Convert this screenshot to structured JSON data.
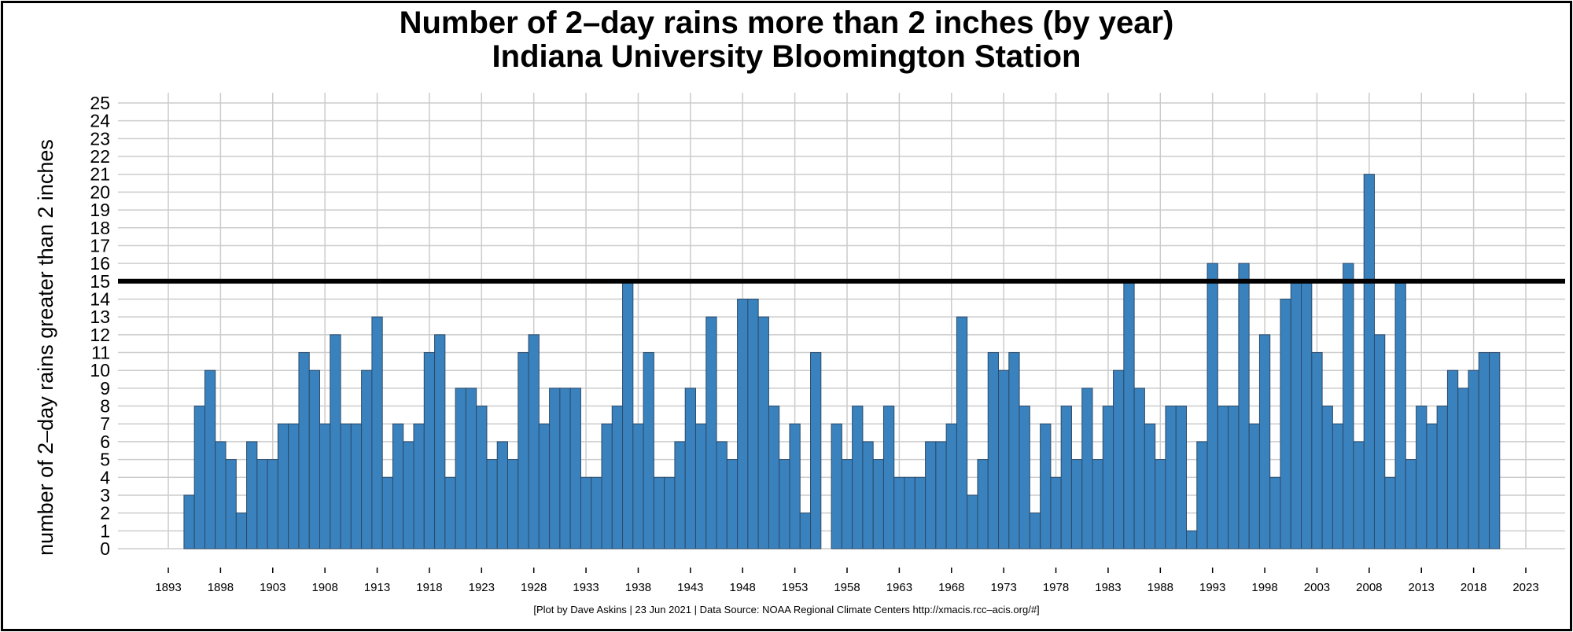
{
  "chart_data": {
    "type": "bar",
    "title": "Number of 2–day rains more than 2 inches (by year)",
    "subtitle": "Indiana University Bloomington Station",
    "xlabel": "",
    "ylabel": "number of 2–day rains greater than 2 inches",
    "ylim": [
      0,
      25
    ],
    "xlim": [
      1893,
      2023
    ],
    "yticks": [
      0,
      1,
      2,
      3,
      4,
      5,
      6,
      7,
      8,
      9,
      10,
      11,
      12,
      13,
      14,
      15,
      16,
      17,
      18,
      19,
      20,
      21,
      22,
      23,
      24,
      25
    ],
    "xticks": [
      1893,
      1898,
      1903,
      1908,
      1913,
      1918,
      1923,
      1928,
      1933,
      1938,
      1943,
      1948,
      1953,
      1958,
      1963,
      1968,
      1973,
      1978,
      1983,
      1988,
      1993,
      1998,
      2003,
      2008,
      2013,
      2018,
      2023
    ],
    "grid": true,
    "reference_line": 15,
    "bar_color": "#3a82bd",
    "bar_edge_color": "#2a4a6a",
    "years": [
      1895,
      1896,
      1897,
      1898,
      1899,
      1900,
      1901,
      1902,
      1903,
      1904,
      1905,
      1906,
      1907,
      1908,
      1909,
      1910,
      1911,
      1912,
      1913,
      1914,
      1915,
      1916,
      1917,
      1918,
      1919,
      1920,
      1921,
      1922,
      1923,
      1924,
      1925,
      1926,
      1927,
      1928,
      1929,
      1930,
      1931,
      1932,
      1933,
      1934,
      1935,
      1936,
      1937,
      1938,
      1939,
      1940,
      1941,
      1942,
      1943,
      1944,
      1945,
      1946,
      1947,
      1948,
      1949,
      1950,
      1951,
      1952,
      1953,
      1954,
      1955,
      1957,
      1958,
      1959,
      1960,
      1961,
      1962,
      1963,
      1964,
      1965,
      1966,
      1967,
      1968,
      1969,
      1970,
      1971,
      1972,
      1973,
      1974,
      1975,
      1976,
      1977,
      1978,
      1979,
      1980,
      1981,
      1982,
      1983,
      1984,
      1985,
      1986,
      1987,
      1988,
      1989,
      1990,
      1991,
      1992,
      1993,
      1994,
      1995,
      1996,
      1997,
      1998,
      1999,
      2000,
      2001,
      2002,
      2003,
      2004,
      2005,
      2006,
      2007,
      2008,
      2009,
      2010,
      2011,
      2012,
      2013,
      2014,
      2015,
      2016,
      2017,
      2018,
      2019,
      2020
    ],
    "values": [
      3,
      8,
      10,
      6,
      5,
      2,
      6,
      5,
      5,
      7,
      7,
      11,
      10,
      7,
      12,
      7,
      7,
      10,
      13,
      4,
      7,
      6,
      7,
      11,
      12,
      4,
      9,
      9,
      8,
      5,
      6,
      5,
      11,
      12,
      7,
      9,
      9,
      9,
      4,
      4,
      7,
      8,
      15,
      7,
      11,
      4,
      4,
      6,
      9,
      7,
      13,
      6,
      5,
      14,
      14,
      13,
      8,
      5,
      7,
      2,
      11,
      7,
      5,
      8,
      6,
      5,
      8,
      4,
      4,
      4,
      6,
      6,
      7,
      13,
      3,
      5,
      11,
      10,
      11,
      8,
      2,
      7,
      4,
      8,
      5,
      9,
      5,
      8,
      10,
      15,
      9,
      7,
      5,
      8,
      8,
      1,
      6,
      16,
      8,
      8,
      16,
      7,
      12,
      4,
      14,
      15,
      15,
      11,
      8,
      7,
      16,
      6,
      21,
      12,
      4,
      15,
      5,
      8,
      7,
      8,
      10,
      9,
      10,
      11,
      11
    ]
  },
  "footer": "[Plot by Dave Askins | 23 Jun 2021 | Data Source: NOAA Regional Climate Centers http://xmacis.rcc–acis.org/#]"
}
